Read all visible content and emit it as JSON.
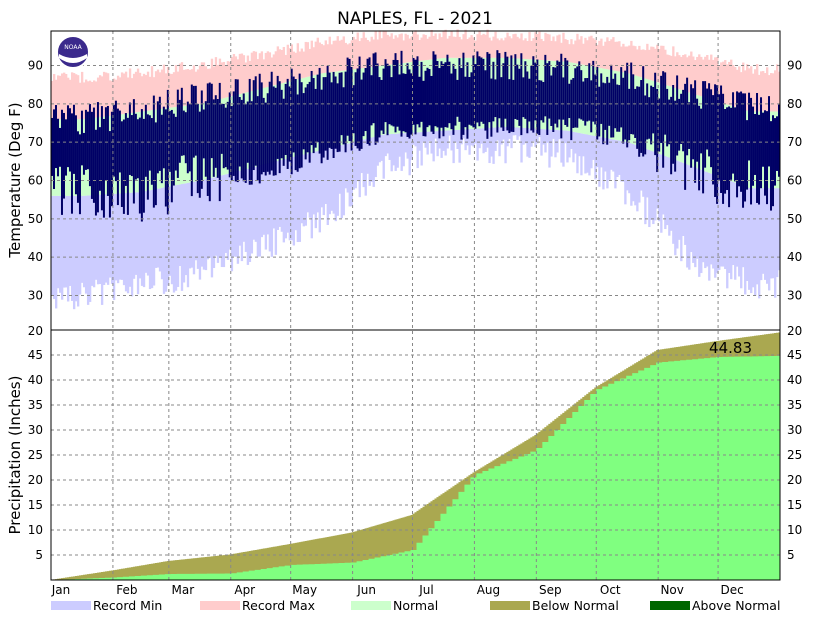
{
  "chart_data": [
    {
      "type": "bar",
      "title": "NAPLES, FL - 2021",
      "ylabel": "Temperature (Deg F)",
      "ylim": [
        21,
        99
      ],
      "yticks": [
        30,
        40,
        50,
        60,
        70,
        80,
        90
      ],
      "months": [
        "Jan",
        "Feb",
        "Mar",
        "Apr",
        "May",
        "Jun",
        "Jul",
        "Aug",
        "Sep",
        "Oct",
        "Nov",
        "Dec"
      ],
      "grid": true,
      "logo": "NOAA",
      "profiles_by_month": {
        "record_max": [
          87,
          88,
          90,
          93,
          96,
          98,
          98,
          98,
          97,
          96,
          93,
          89
        ],
        "normal_high": [
          76,
          78,
          80,
          84,
          88,
          90,
          92,
          92,
          91,
          88,
          83,
          78
        ],
        "normal_low": [
          56,
          57,
          60,
          64,
          68,
          72,
          73,
          74,
          73,
          70,
          64,
          58
        ],
        "record_min": [
          30,
          33,
          36,
          42,
          50,
          63,
          68,
          68,
          67,
          57,
          40,
          33
        ]
      },
      "observed_by_month": {
        "high": [
          76,
          78,
          82,
          84,
          87,
          90,
          90,
          90,
          89,
          87,
          83,
          79
        ],
        "low": [
          58,
          56,
          62,
          62,
          68,
          73,
          74,
          74,
          74,
          71,
          63,
          59
        ]
      },
      "colors": {
        "record_min": "#ccccff",
        "record_max": "#ffcccc",
        "normal": "#ccffcc",
        "observed": "#000066"
      }
    },
    {
      "type": "area",
      "ylabel": "Precipitation (Inches)",
      "ylim": [
        0,
        50
      ],
      "ytick_values": [
        5,
        10,
        15,
        20,
        25,
        30,
        35,
        40,
        45
      ],
      "ytick_top_label": "20",
      "total_label": "44.83",
      "cumulative_observed_month_end": [
        0.5,
        1.2,
        1.3,
        3.0,
        3.5,
        6.0,
        21.0,
        26.0,
        38.0,
        43.5,
        44.6,
        44.83
      ],
      "cumulative_normal_month_end": [
        1.9,
        3.8,
        5.1,
        7.2,
        9.5,
        13.0,
        21.5,
        29.0,
        38.5,
        46.0,
        47.8,
        49.5
      ],
      "colors": {
        "observed": "#80ff80",
        "below_normal": "#aaa850",
        "above_normal": "#006600"
      }
    }
  ],
  "legend": [
    {
      "label": "Record Min",
      "color": "#ccccff"
    },
    {
      "label": "Record Max",
      "color": "#ffcccc"
    },
    {
      "label": "Normal",
      "color": "#ccffcc"
    },
    {
      "label": "Below Normal",
      "color": "#aaa850"
    },
    {
      "label": "Above Normal",
      "color": "#006600"
    }
  ]
}
